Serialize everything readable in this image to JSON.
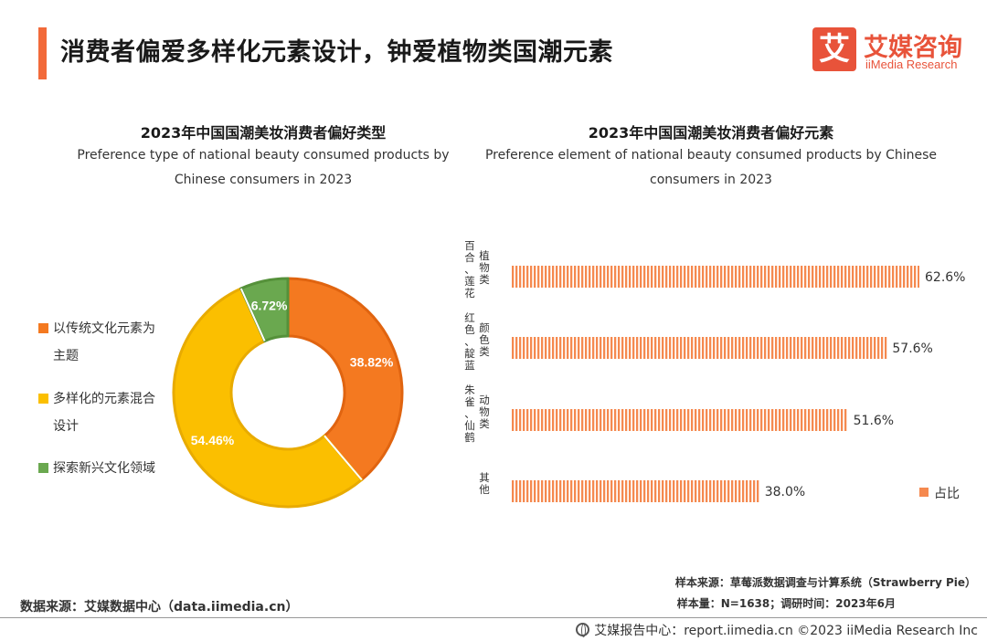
{
  "header": {
    "title": "消费者偏爱多样化元素设计，钟爱植物类国潮元素",
    "logo_char": "艾",
    "logo_cn": "艾媒咨询",
    "logo_en": "iiMedia Research"
  },
  "left_chart": {
    "title": "2023年中国国潮美妆消费者偏好类型",
    "subtitle_line1": "Preference type of  national beauty  consumed products by",
    "subtitle_line2": "Chinese consumers in 2023"
  },
  "right_chart": {
    "title": "2023年中国国潮美妆消费者偏好元素",
    "subtitle_line1": "Preference element of  national beauty  consumed products by Chinese",
    "subtitle_line2": "consumers in 2023",
    "legend": "占比"
  },
  "legend": [
    {
      "line1": "以传统文化元素为",
      "line2": "主题",
      "color": "#f47920"
    },
    {
      "line1": "多样化的元素混合",
      "line2": "设计",
      "color": "#fbbf00"
    },
    {
      "line1": "探索新兴文化领域",
      "line2": "",
      "color": "#6aa84f"
    }
  ],
  "chart_data": [
    {
      "type": "pie",
      "variant": "donut",
      "title": "2023年中国国潮美妆消费者偏好类型",
      "categories": [
        "以传统文化元素为主题",
        "多样化的元素混合设计",
        "探索新兴文化领域"
      ],
      "values": [
        38.82,
        54.46,
        6.72
      ],
      "labels": [
        "38.82%",
        "54.46%",
        "6.72%"
      ],
      "colors": [
        "#f47920",
        "#fbbf00",
        "#6aa84f"
      ],
      "unit": "%"
    },
    {
      "type": "bar",
      "orientation": "horizontal",
      "title": "2023年中国国潮美妆消费者偏好元素",
      "categories": [
        "植物类（百合、莲花）",
        "颜色类（红色、靛蓝）",
        "动物类（朱雀、仙鹤）",
        "其他"
      ],
      "category_labels": [
        {
          "main": "植物类",
          "sub": "（百合、莲花）"
        },
        {
          "main": "颜色类",
          "sub": "（红色、靛蓝）"
        },
        {
          "main": "动物类",
          "sub": "（朱雀、仙鹤）"
        },
        {
          "main": "其他",
          "sub": ""
        }
      ],
      "series": [
        {
          "name": "占比",
          "values": [
            62.6,
            57.6,
            51.6,
            38.0
          ]
        }
      ],
      "labels": [
        "62.6%",
        "57.6%",
        "51.6%",
        "38.0%"
      ],
      "xlim": [
        0,
        70
      ],
      "color": "#f5894f",
      "legend": "right"
    }
  ],
  "footer": {
    "sample_source": "样本来源：草莓派数据调查与计算系统（Strawberry Pie）",
    "sample_size": "样本量：N=1638；调研时间：2023年6月",
    "data_source": "数据来源：艾媒数据中心（data.iimedia.cn）",
    "report": "艾媒报告中心：report.iimedia.cn  ©2023  iiMedia Research  Inc"
  }
}
